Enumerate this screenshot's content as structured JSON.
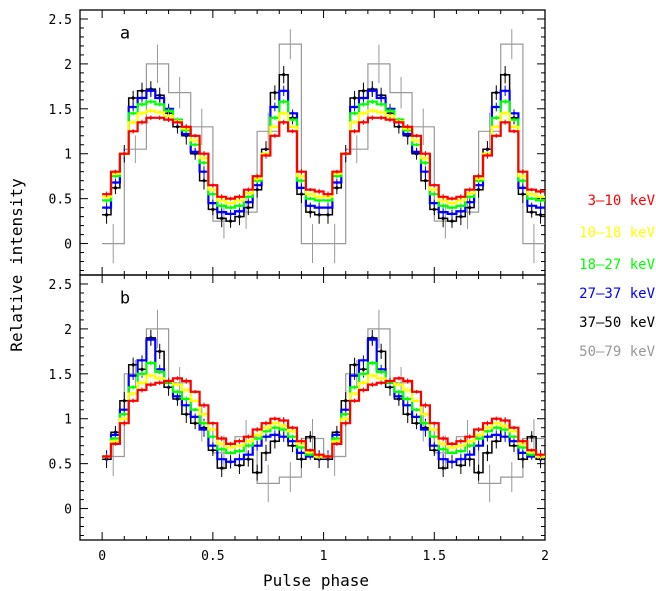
{
  "figure": {
    "xlabel": "Pulse phase",
    "ylabel": "Relative intensity",
    "legend": {
      "placement": "right",
      "entries": [
        {
          "label": "3–10 keV",
          "color": "#ff0000"
        },
        {
          "label": "10–18 keV",
          "color": "#ffff00"
        },
        {
          "label": "18–27 keV",
          "color": "#00ff00"
        },
        {
          "label": "27–37 keV",
          "color": "#0000ff"
        },
        {
          "label": "37–50 keV",
          "color": "#000000"
        },
        {
          "label": "50–79 keV",
          "color": "#999999"
        }
      ]
    }
  },
  "chart_data": [
    {
      "type": "line",
      "panel_label": "a",
      "xlim": [
        -0.1,
        2.0
      ],
      "ylim": [
        -0.35,
        2.6
      ],
      "xticks": [
        0,
        0.5,
        1,
        1.5,
        2
      ],
      "xtick_labels": [
        "",
        "",
        "",
        "",
        ""
      ],
      "yticks": [
        0,
        0.5,
        1,
        1.5,
        2,
        2.5
      ],
      "ytick_labels": [
        "0",
        "0.5",
        "1",
        "1.5",
        "2",
        "2.5"
      ],
      "series": [
        {
          "name": "3–10 keV",
          "color": "#ff0000",
          "x": [
            0.02,
            0.06,
            0.1,
            0.14,
            0.18,
            0.22,
            0.26,
            0.3,
            0.34,
            0.38,
            0.42,
            0.46,
            0.5,
            0.54,
            0.58,
            0.62,
            0.66,
            0.7,
            0.74,
            0.78,
            0.82,
            0.86,
            0.9,
            0.94,
            0.98
          ],
          "y": [
            0.55,
            0.8,
            1.0,
            1.25,
            1.35,
            1.4,
            1.4,
            1.38,
            1.35,
            1.3,
            1.2,
            1.0,
            0.65,
            0.52,
            0.5,
            0.52,
            0.6,
            0.75,
            0.98,
            1.2,
            1.35,
            1.25,
            0.8,
            0.6,
            0.58
          ]
        },
        {
          "name": "10–18 keV",
          "color": "#ffff00",
          "x": [
            0.02,
            0.06,
            0.1,
            0.14,
            0.18,
            0.22,
            0.26,
            0.3,
            0.34,
            0.38,
            0.42,
            0.46,
            0.5,
            0.54,
            0.58,
            0.62,
            0.66,
            0.7,
            0.74,
            0.78,
            0.82,
            0.86,
            0.9,
            0.94,
            0.98
          ],
          "y": [
            0.52,
            0.78,
            1.0,
            1.35,
            1.45,
            1.48,
            1.46,
            1.42,
            1.36,
            1.28,
            1.15,
            0.95,
            0.6,
            0.48,
            0.45,
            0.48,
            0.56,
            0.72,
            1.0,
            1.3,
            1.45,
            1.3,
            0.75,
            0.55,
            0.52
          ]
        },
        {
          "name": "18–27 keV",
          "color": "#00ff00",
          "x": [
            0.02,
            0.06,
            0.1,
            0.14,
            0.18,
            0.22,
            0.26,
            0.3,
            0.34,
            0.38,
            0.42,
            0.46,
            0.5,
            0.54,
            0.58,
            0.62,
            0.66,
            0.7,
            0.74,
            0.78,
            0.82,
            0.86,
            0.9,
            0.94,
            0.98
          ],
          "y": [
            0.48,
            0.75,
            1.0,
            1.45,
            1.55,
            1.58,
            1.55,
            1.48,
            1.38,
            1.26,
            1.1,
            0.9,
            0.55,
            0.42,
            0.4,
            0.42,
            0.52,
            0.7,
            1.0,
            1.4,
            1.58,
            1.38,
            0.7,
            0.5,
            0.48
          ]
        },
        {
          "name": "27–37 keV",
          "color": "#0000ff",
          "x": [
            0.02,
            0.06,
            0.1,
            0.14,
            0.18,
            0.22,
            0.26,
            0.3,
            0.34,
            0.38,
            0.42,
            0.46,
            0.5,
            0.54,
            0.58,
            0.62,
            0.66,
            0.7,
            0.74,
            0.78,
            0.82,
            0.86,
            0.9,
            0.94,
            0.98
          ],
          "y": [
            0.4,
            0.68,
            1.0,
            1.52,
            1.62,
            1.7,
            1.62,
            1.5,
            1.35,
            1.22,
            1.02,
            0.8,
            0.45,
            0.35,
            0.33,
            0.36,
            0.46,
            0.65,
            1.0,
            1.52,
            1.7,
            1.45,
            0.62,
            0.42,
            0.4
          ]
        },
        {
          "name": "37–50 keV",
          "color": "#000000",
          "x": [
            0.02,
            0.06,
            0.1,
            0.14,
            0.18,
            0.22,
            0.26,
            0.3,
            0.34,
            0.38,
            0.42,
            0.46,
            0.5,
            0.54,
            0.58,
            0.62,
            0.66,
            0.7,
            0.74,
            0.78,
            0.82,
            0.86,
            0.9,
            0.94,
            0.98
          ],
          "y": [
            0.32,
            0.62,
            1.0,
            1.62,
            1.7,
            1.72,
            1.65,
            1.45,
            1.3,
            1.2,
            1.0,
            0.7,
            0.38,
            0.28,
            0.25,
            0.3,
            0.4,
            0.6,
            1.05,
            1.68,
            1.88,
            1.4,
            0.55,
            0.35,
            0.32
          ]
        },
        {
          "name": "50–79 keV",
          "color": "#999999",
          "x": [
            0.05,
            0.15,
            0.25,
            0.35,
            0.45,
            0.55,
            0.65,
            0.75,
            0.85,
            0.95
          ],
          "y": [
            0.0,
            1.05,
            2.0,
            1.68,
            1.3,
            0.25,
            0.35,
            1.25,
            2.22,
            0.0
          ]
        }
      ]
    },
    {
      "type": "line",
      "panel_label": "b",
      "xlim": [
        -0.1,
        2.0
      ],
      "ylim": [
        -0.35,
        2.6
      ],
      "xticks": [
        0,
        0.5,
        1,
        1.5,
        2
      ],
      "xtick_labels": [
        "0",
        "0.5",
        "1",
        "1.5",
        "2"
      ],
      "yticks": [
        0,
        0.5,
        1,
        1.5,
        2,
        2.5
      ],
      "ytick_labels": [
        "0",
        "0.5",
        "1",
        "1.5",
        "2",
        "2.5"
      ],
      "series": [
        {
          "name": "3–10 keV",
          "color": "#ff0000",
          "x": [
            0.02,
            0.06,
            0.1,
            0.14,
            0.18,
            0.22,
            0.26,
            0.3,
            0.34,
            0.38,
            0.42,
            0.46,
            0.5,
            0.54,
            0.58,
            0.62,
            0.66,
            0.7,
            0.74,
            0.78,
            0.82,
            0.86,
            0.9,
            0.94,
            0.98
          ],
          "y": [
            0.58,
            0.72,
            0.95,
            1.2,
            1.32,
            1.38,
            1.4,
            1.42,
            1.45,
            1.42,
            1.3,
            1.15,
            0.95,
            0.78,
            0.72,
            0.75,
            0.8,
            0.88,
            0.95,
            1.0,
            0.98,
            0.9,
            0.75,
            0.65,
            0.6
          ]
        },
        {
          "name": "10–18 keV",
          "color": "#ffff00",
          "x": [
            0.02,
            0.06,
            0.1,
            0.14,
            0.18,
            0.22,
            0.26,
            0.3,
            0.34,
            0.38,
            0.42,
            0.46,
            0.5,
            0.54,
            0.58,
            0.62,
            0.66,
            0.7,
            0.74,
            0.78,
            0.82,
            0.86,
            0.9,
            0.94,
            0.98
          ],
          "y": [
            0.58,
            0.75,
            1.0,
            1.28,
            1.4,
            1.48,
            1.45,
            1.42,
            1.38,
            1.32,
            1.2,
            1.05,
            0.88,
            0.72,
            0.68,
            0.7,
            0.75,
            0.82,
            0.9,
            0.95,
            0.92,
            0.86,
            0.72,
            0.63,
            0.58
          ]
        },
        {
          "name": "18–27 keV",
          "color": "#00ff00",
          "x": [
            0.02,
            0.06,
            0.1,
            0.14,
            0.18,
            0.22,
            0.26,
            0.3,
            0.34,
            0.38,
            0.42,
            0.46,
            0.5,
            0.54,
            0.58,
            0.62,
            0.66,
            0.7,
            0.74,
            0.78,
            0.82,
            0.86,
            0.9,
            0.94,
            0.98
          ],
          "y": [
            0.58,
            0.78,
            1.05,
            1.35,
            1.5,
            1.62,
            1.52,
            1.4,
            1.3,
            1.22,
            1.1,
            0.95,
            0.8,
            0.66,
            0.62,
            0.64,
            0.7,
            0.78,
            0.86,
            0.9,
            0.88,
            0.8,
            0.68,
            0.6,
            0.58
          ]
        },
        {
          "name": "27–37 keV",
          "color": "#0000ff",
          "x": [
            0.02,
            0.06,
            0.1,
            0.14,
            0.18,
            0.22,
            0.26,
            0.3,
            0.34,
            0.38,
            0.42,
            0.46,
            0.5,
            0.54,
            0.58,
            0.62,
            0.66,
            0.7,
            0.74,
            0.78,
            0.82,
            0.86,
            0.9,
            0.94,
            0.98
          ],
          "y": [
            0.58,
            0.82,
            1.1,
            1.48,
            1.65,
            1.88,
            1.55,
            1.4,
            1.25,
            1.15,
            1.02,
            0.88,
            0.7,
            0.55,
            0.52,
            0.55,
            0.6,
            0.7,
            0.8,
            0.82,
            0.8,
            0.75,
            0.62,
            0.58,
            0.58
          ]
        },
        {
          "name": "37–50 keV",
          "color": "#000000",
          "x": [
            0.02,
            0.06,
            0.1,
            0.14,
            0.18,
            0.22,
            0.26,
            0.3,
            0.34,
            0.38,
            0.42,
            0.46,
            0.5,
            0.54,
            0.58,
            0.62,
            0.66,
            0.7,
            0.74,
            0.78,
            0.82,
            0.86,
            0.9,
            0.94,
            0.98
          ],
          "y": [
            0.55,
            0.85,
            1.2,
            1.6,
            1.55,
            1.9,
            1.75,
            1.35,
            1.22,
            1.05,
            0.95,
            0.9,
            0.65,
            0.45,
            0.52,
            0.48,
            0.55,
            0.4,
            0.62,
            0.75,
            0.92,
            0.7,
            0.55,
            0.8,
            0.55
          ]
        },
        {
          "name": "50–79 keV",
          "color": "#999999",
          "x": [
            0.05,
            0.15,
            0.25,
            0.35,
            0.45,
            0.55,
            0.65,
            0.75,
            0.85,
            0.95
          ],
          "y": [
            0.58,
            1.5,
            2.0,
            1.4,
            0.95,
            0.62,
            0.8,
            0.28,
            0.35,
            0.78
          ]
        }
      ]
    }
  ]
}
